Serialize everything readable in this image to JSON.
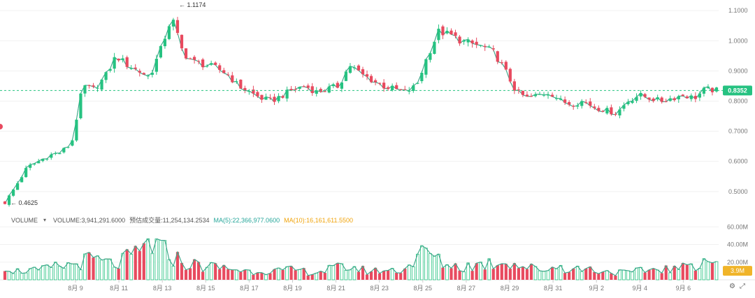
{
  "chart_data": {
    "type": "candlestick",
    "x_labels": [
      "8月 9",
      "8月 11",
      "8月 13",
      "8月 15",
      "8月 17",
      "8月 19",
      "8月 21",
      "8月 23",
      "8月 25",
      "8月 27",
      "8月 29",
      "8月 31",
      "9月 2",
      "9月 4",
      "9月 6"
    ],
    "price_axis": {
      "ticks": [
        "1.1000",
        "1.0000",
        "0.9000",
        "0.8000",
        "0.7000",
        "0.6000",
        "0.5000"
      ],
      "ylim": [
        0.4394,
        1.1351
      ]
    },
    "annotations": {
      "high": "← 1.1174",
      "low": "← 0.4625",
      "current_price": "0.8352",
      "current_volume": "3.9M"
    },
    "volume_axis": {
      "ticks": [
        "60.00M",
        "40.00M",
        "20.00M"
      ],
      "ylim": [
        0,
        65
      ]
    },
    "volume_legend": {
      "label": "VOLUME",
      "volume": "VOLUME:3,941,291.6000",
      "estimated": "预估成交量:11,254,134.2534",
      "ma5": "MA(5):22,366,977.0600",
      "ma10": "MA(10):16,161,611.5500"
    },
    "series_names": [
      "MA(5)",
      "MA(10)"
    ],
    "close_anchors": [
      0.4625,
      0.52,
      0.58,
      0.6,
      0.62,
      0.63,
      0.66,
      0.85,
      0.84,
      0.88,
      0.95,
      0.92,
      0.9,
      0.88,
      0.97,
      1.08,
      0.96,
      0.93,
      0.92,
      0.91,
      0.89,
      0.85,
      0.83,
      0.81,
      0.8,
      0.82,
      0.84,
      0.85,
      0.83,
      0.84,
      0.85,
      0.92,
      0.89,
      0.87,
      0.85,
      0.84,
      0.83,
      0.85,
      0.95,
      1.03,
      1.02,
      1.0,
      0.99,
      0.98,
      0.96,
      0.9,
      0.83,
      0.81,
      0.82,
      0.83,
      0.8,
      0.79,
      0.8,
      0.78,
      0.77,
      0.76,
      0.8,
      0.82,
      0.81,
      0.8,
      0.81,
      0.82,
      0.81,
      0.84,
      0.8352
    ],
    "volume_anchors": [
      18,
      10,
      12,
      10,
      14,
      16,
      18,
      22,
      24,
      20,
      18,
      25,
      30,
      45,
      35,
      30,
      20,
      18,
      16,
      15,
      14,
      12,
      10,
      12,
      11,
      10,
      12,
      10,
      9,
      12,
      14,
      16,
      12,
      10,
      12,
      11,
      14,
      25,
      35,
      22,
      18,
      15,
      17,
      19,
      20,
      24,
      18,
      15,
      12,
      14,
      16,
      12,
      14,
      12,
      10,
      9,
      8,
      10,
      12,
      14,
      12,
      14,
      20,
      25,
      22
    ],
    "colors": {
      "up": "#26c281",
      "down": "#e84a5f",
      "ma5": "#26a69a",
      "ma10": "#f0b429",
      "price_tag": "#26c281",
      "vol_tag": "#f0b429"
    }
  }
}
